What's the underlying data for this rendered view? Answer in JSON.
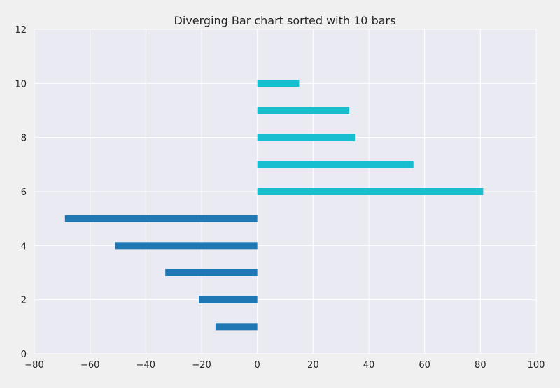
{
  "chart_data": {
    "type": "bar",
    "orientation": "horizontal",
    "title": "Diverging Bar chart sorted with 10 bars",
    "xlabel": "",
    "ylabel": "",
    "xlim": [
      -80,
      100
    ],
    "ylim": [
      0,
      12
    ],
    "xticks": [
      -80,
      -60,
      -40,
      -20,
      0,
      20,
      40,
      60,
      80,
      100
    ],
    "yticks": [
      0,
      2,
      4,
      6,
      8,
      10,
      12
    ],
    "xtick_labels": [
      "−80",
      "−60",
      "−40",
      "−20",
      "0",
      "20",
      "40",
      "60",
      "80",
      "100"
    ],
    "ytick_labels": [
      "0",
      "2",
      "4",
      "6",
      "8",
      "10",
      "12"
    ],
    "grid": true,
    "legend": "none",
    "y": [
      1,
      2,
      3,
      4,
      5,
      6,
      7,
      8,
      9,
      10
    ],
    "values": [
      -15,
      -21,
      -33,
      -51,
      -69,
      81,
      56,
      35,
      33,
      15
    ],
    "colors": {
      "negative": "#1f77b4",
      "positive": "#17becf",
      "plot_background": "#eaeaf2",
      "grid": "#ffffff",
      "figure_background": "#f0f0f0"
    }
  }
}
